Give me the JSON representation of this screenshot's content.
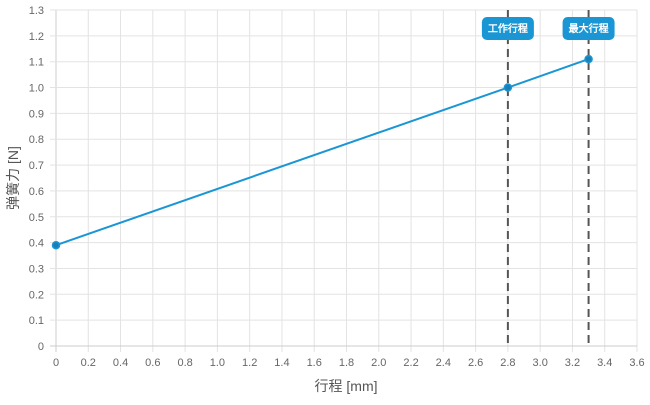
{
  "chart_data": {
    "type": "line",
    "title": "",
    "xlabel": "行程 [mm]",
    "ylabel": "弹簧力 [N]",
    "xlim": [
      0,
      3.6
    ],
    "ylim": [
      0,
      1.3
    ],
    "x_ticks": [
      "0",
      "0.2",
      "0.4",
      "0.6",
      "0.8",
      "1.0",
      "1.2",
      "1.4",
      "1.6",
      "1.8",
      "2.0",
      "2.2",
      "2.4",
      "2.6",
      "2.8",
      "3.0",
      "3.2",
      "3.4",
      "3.6"
    ],
    "y_ticks": [
      "0",
      "0.1",
      "0.2",
      "0.3",
      "0.4",
      "0.5",
      "0.6",
      "0.7",
      "0.8",
      "0.9",
      "1.0",
      "1.1",
      "1.2",
      "1.3"
    ],
    "grid": true,
    "series": [
      {
        "x": [
          0,
          2.8,
          3.3
        ],
        "y": [
          0.39,
          1.0,
          1.11
        ],
        "color": "#1a96d4"
      }
    ],
    "annotations": [
      {
        "label": "工作行程",
        "x": 2.8,
        "style": "dashed-vertical"
      },
      {
        "label": "最大行程",
        "x": 3.3,
        "style": "dashed-vertical"
      }
    ],
    "colors": {
      "line": "#1a96d4",
      "badge": "#1a96d4",
      "marker_line": "#555555",
      "grid": "#e3e3e3"
    }
  }
}
